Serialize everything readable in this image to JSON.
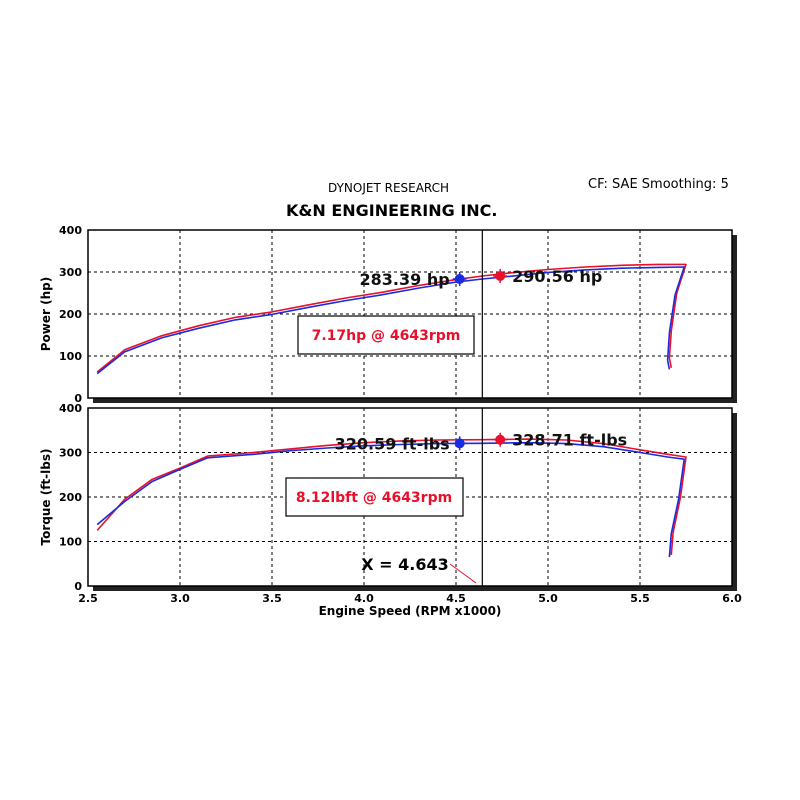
{
  "header": {
    "brand": "DYNOJET RESEARCH",
    "title": "K&N ENGINEERING INC.",
    "settings": "CF: SAE  Smoothing: 5"
  },
  "chart_data": [
    {
      "type": "line",
      "ylabel": "Power (hp)",
      "xlim": [
        2.5,
        6.0
      ],
      "ylim": [
        0,
        400
      ],
      "yticks": [
        "0",
        "100",
        "200",
        "300",
        "400"
      ],
      "grid": true,
      "cursor_x": 4.643,
      "gain_label": "7.17hp @ 4643rpm",
      "series": [
        {
          "color": "#e8102a",
          "values": [
            [
              2.55,
              62
            ],
            [
              2.7,
              115
            ],
            [
              2.9,
              148
            ],
            [
              3.1,
              172
            ],
            [
              3.3,
              192
            ],
            [
              3.5,
              205
            ],
            [
              3.7,
              222
            ],
            [
              3.9,
              238
            ],
            [
              4.1,
              252
            ],
            [
              4.3,
              268
            ],
            [
              4.5,
              282
            ],
            [
              4.643,
              290.56
            ],
            [
              4.8,
              298
            ],
            [
              5.0,
              306
            ],
            [
              5.2,
              312
            ],
            [
              5.4,
              316
            ],
            [
              5.6,
              318
            ],
            [
              5.75,
              318
            ],
            [
              5.7,
              250
            ],
            [
              5.67,
              160
            ],
            [
              5.66,
              95
            ],
            [
              5.67,
              72
            ]
          ]
        },
        {
          "color": "#1a2be0",
          "values": [
            [
              2.55,
              58
            ],
            [
              2.7,
              110
            ],
            [
              2.9,
              143
            ],
            [
              3.1,
              166
            ],
            [
              3.3,
              186
            ],
            [
              3.5,
              199
            ],
            [
              3.7,
              216
            ],
            [
              3.9,
              232
            ],
            [
              4.1,
              246
            ],
            [
              4.3,
              262
            ],
            [
              4.5,
              276
            ],
            [
              4.643,
              283.39
            ],
            [
              4.8,
              290
            ],
            [
              5.0,
              299
            ],
            [
              5.2,
              305
            ],
            [
              5.4,
              309
            ],
            [
              5.6,
              311
            ],
            [
              5.74,
              312
            ],
            [
              5.69,
              245
            ],
            [
              5.66,
              155
            ],
            [
              5.65,
              90
            ],
            [
              5.66,
              68
            ]
          ]
        }
      ],
      "markers": [
        {
          "x": 4.52,
          "y": 283.39,
          "color": "#1a2be0",
          "label": "283.39 hp"
        },
        {
          "x": 4.74,
          "y": 290.56,
          "color": "#e8102a",
          "label": "290.56 hp"
        }
      ]
    },
    {
      "type": "line",
      "ylabel": "Torque (ft-lbs)",
      "xlabel": "Engine Speed (RPM x1000)",
      "xlim": [
        2.5,
        6.0
      ],
      "ylim": [
        0,
        400
      ],
      "xticks": [
        "2.5",
        "3.0",
        "3.5",
        "4.0",
        "4.5",
        "5.0",
        "5.5",
        "6.0"
      ],
      "yticks": [
        "0",
        "100",
        "200",
        "300",
        "400"
      ],
      "grid": true,
      "cursor_x": 4.643,
      "cursor_label": "X = 4.643",
      "gain_label": "8.12lbft @ 4643rpm",
      "series": [
        {
          "color": "#e8102a",
          "values": [
            [
              2.55,
              125
            ],
            [
              2.7,
              195
            ],
            [
              2.85,
              240
            ],
            [
              3.0,
              265
            ],
            [
              3.15,
              292
            ],
            [
              3.4,
              300
            ],
            [
              3.6,
              308
            ],
            [
              3.8,
              316
            ],
            [
              4.0,
              322
            ],
            [
              4.2,
              326
            ],
            [
              4.4,
              328
            ],
            [
              4.643,
              328.71
            ],
            [
              4.9,
              330
            ],
            [
              5.1,
              328
            ],
            [
              5.3,
              320
            ],
            [
              5.5,
              306
            ],
            [
              5.65,
              296
            ],
            [
              5.75,
              290
            ],
            [
              5.72,
              200
            ],
            [
              5.68,
              120
            ],
            [
              5.67,
              70
            ]
          ]
        },
        {
          "color": "#1a2be0",
          "values": [
            [
              2.55,
              138
            ],
            [
              2.7,
              190
            ],
            [
              2.85,
              235
            ],
            [
              3.0,
              262
            ],
            [
              3.15,
              288
            ],
            [
              3.4,
              296
            ],
            [
              3.6,
              304
            ],
            [
              3.8,
              310
            ],
            [
              4.0,
              315
            ],
            [
              4.2,
              318
            ],
            [
              4.4,
              320
            ],
            [
              4.643,
              320.59
            ],
            [
              4.9,
              322
            ],
            [
              5.1,
              320
            ],
            [
              5.3,
              313
            ],
            [
              5.5,
              300
            ],
            [
              5.65,
              290
            ],
            [
              5.74,
              285
            ],
            [
              5.71,
              195
            ],
            [
              5.67,
              118
            ],
            [
              5.66,
              65
            ]
          ]
        }
      ],
      "markers": [
        {
          "x": 4.52,
          "y": 320.59,
          "color": "#1a2be0",
          "label": "320.59 ft-lbs"
        },
        {
          "x": 4.74,
          "y": 328.71,
          "color": "#e8102a",
          "label": "328.71 ft-lbs"
        }
      ]
    }
  ]
}
